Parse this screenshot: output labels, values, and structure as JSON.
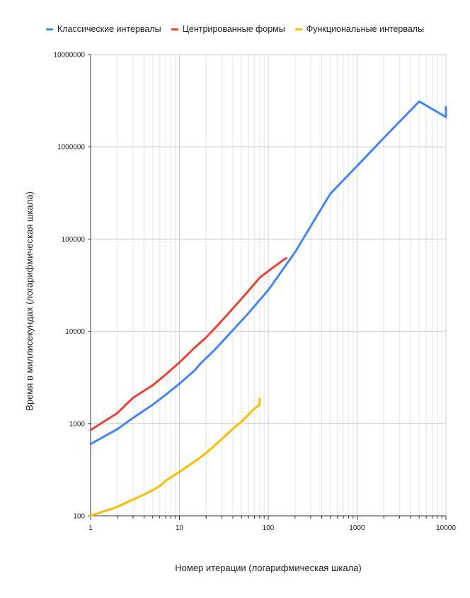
{
  "chart_data": {
    "type": "line",
    "title": "",
    "xlabel": "Номер итерации (логарифмическая шкала)",
    "ylabel": "Время в миллисекундах (логарифмическая шкала)",
    "x_scale": "log",
    "y_scale": "log",
    "xlim": [
      1,
      10000
    ],
    "ylim": [
      100,
      10000000
    ],
    "x_ticks": [
      "1",
      "10",
      "100",
      "1000",
      "10000"
    ],
    "y_ticks": [
      "100",
      "1000",
      "10000",
      "100000",
      "1000000",
      "10000000"
    ],
    "grid": true,
    "legend_position": "top",
    "series": [
      {
        "name": "Классические интервалы",
        "color": "#4285f4",
        "x": [
          1,
          2,
          3,
          5,
          7,
          10,
          15,
          17,
          25,
          40,
          60,
          100,
          200,
          500,
          1000,
          2000,
          5000,
          10000,
          10000
        ],
        "y": [
          600,
          870,
          1150,
          1600,
          2050,
          2700,
          3800,
          4400,
          6300,
          10300,
          15800,
          28000,
          72000,
          310000,
          620000,
          1250000,
          3100000,
          2100000,
          2700000
        ]
      },
      {
        "name": "Центрированные формы",
        "color": "#ea4335",
        "x": [
          1,
          2,
          3,
          5,
          7,
          10,
          15,
          20,
          30,
          50,
          80,
          100,
          150,
          160
        ],
        "y": [
          850,
          1300,
          1900,
          2600,
          3400,
          4600,
          6700,
          8600,
          13000,
          22500,
          38000,
          45000,
          60000,
          62000
        ]
      },
      {
        "name": "Функциональные интервалы",
        "color": "#fbbc04",
        "x": [
          1,
          2,
          3,
          4,
          5,
          6,
          7,
          10,
          15,
          20,
          30,
          40,
          50,
          70,
          80,
          80
        ],
        "y": [
          100,
          125,
          150,
          170,
          190,
          210,
          240,
          300,
          390,
          480,
          680,
          880,
          1050,
          1450,
          1600,
          1850
        ]
      }
    ]
  }
}
